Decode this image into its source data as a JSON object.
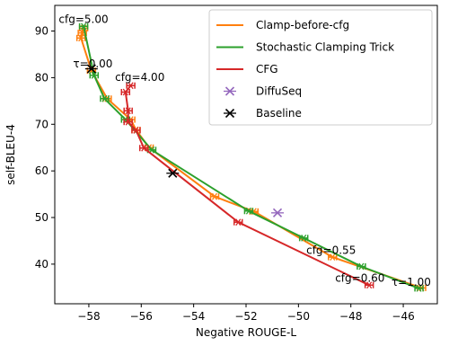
{
  "chart_data": {
    "type": "line",
    "xlabel": "Negative ROUGE-L",
    "ylabel": "self-BLEU-4",
    "xlim": [
      -59.3,
      -44.7
    ],
    "ylim": [
      31.5,
      95.5
    ],
    "xticks": [
      -58,
      -56,
      -54,
      -52,
      -50,
      -48,
      -46
    ],
    "yticks": [
      40,
      50,
      60,
      70,
      80,
      90
    ],
    "grid": false,
    "legend_position": "top-right",
    "series": [
      {
        "name": "Clamp-before-cfg",
        "color": "#ff7f0e",
        "marker": "errorbar",
        "points": [
          [
            -58.2,
            90.6
          ],
          [
            -58.25,
            89.6
          ],
          [
            -58.3,
            88.5
          ],
          [
            -57.9,
            81.5
          ],
          [
            -57.3,
            75.5
          ],
          [
            -56.4,
            71.0
          ],
          [
            -56.2,
            68.8
          ],
          [
            -55.7,
            65.0
          ],
          [
            -53.2,
            54.5
          ],
          [
            -51.7,
            51.3
          ],
          [
            -48.7,
            41.5
          ],
          [
            -45.3,
            34.9
          ]
        ]
      },
      {
        "name": "Stochastic Clamping Trick",
        "color": "#2ca02c",
        "marker": "errorbar",
        "points": [
          [
            -58.2,
            91.0
          ],
          [
            -57.8,
            80.5
          ],
          [
            -57.4,
            75.5
          ],
          [
            -56.6,
            71.0
          ],
          [
            -55.6,
            64.5
          ],
          [
            -51.9,
            51.4
          ],
          [
            -49.8,
            45.6
          ],
          [
            -47.6,
            39.5
          ],
          [
            -45.4,
            34.8
          ]
        ]
      },
      {
        "name": "CFG",
        "color": "#d62728",
        "marker": "errorbar",
        "points": [
          [
            -56.4,
            78.3
          ],
          [
            -56.6,
            76.9
          ],
          [
            -56.5,
            72.9
          ],
          [
            -56.5,
            70.5
          ],
          [
            -56.2,
            68.7
          ],
          [
            -55.9,
            64.9
          ],
          [
            -52.3,
            49.0
          ],
          [
            -47.3,
            35.5
          ]
        ]
      },
      {
        "name": "DiffuSeq",
        "color": "#9467bd",
        "marker": "x",
        "points": [
          [
            -50.8,
            51.0
          ]
        ]
      },
      {
        "name": "Baseline",
        "color": "#000000",
        "marker": "x",
        "points": [
          [
            -57.9,
            81.9
          ],
          [
            -54.8,
            59.5
          ]
        ]
      }
    ],
    "annotations": [
      {
        "text": "cfg=5.00",
        "x": -59.15,
        "y": 91.7
      },
      {
        "text": "τ=0.00",
        "x": -58.6,
        "y": 82.2
      },
      {
        "text": "cfg=4.00",
        "x": -57.0,
        "y": 79.3
      },
      {
        "text": "cfg=0.55",
        "x": -49.7,
        "y": 42.2
      },
      {
        "text": "cfg=0.60",
        "x": -48.6,
        "y": 36.2
      },
      {
        "text": "τ=1.00",
        "x": -46.45,
        "y": 35.4
      }
    ]
  }
}
